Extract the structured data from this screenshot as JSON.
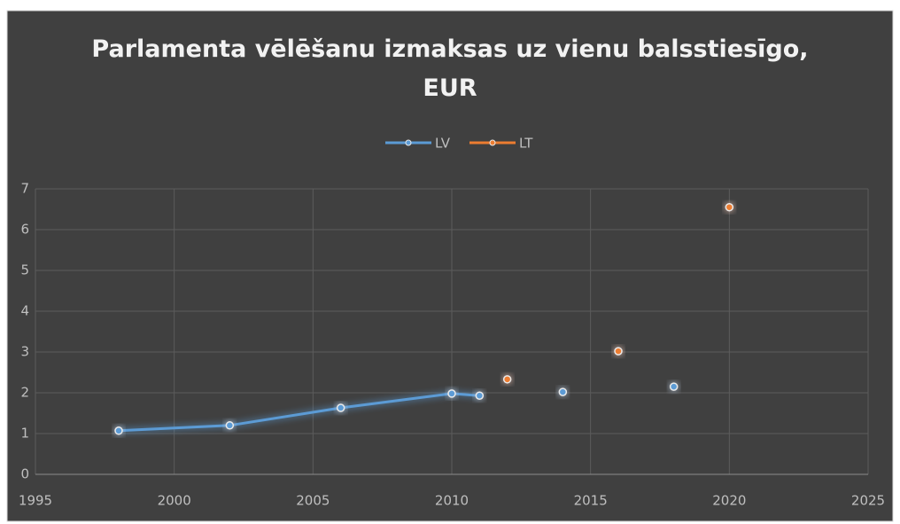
{
  "chart_data": {
    "type": "line",
    "title": "Parlamenta vēlēšanu izmaksas uz vienu balsstiesīgo, EUR",
    "x": [
      1998,
      2002,
      2006,
      2010,
      2011,
      2012,
      2014,
      2016,
      2018,
      2020
    ],
    "series": [
      {
        "name": "LV",
        "color": "#5b9bd5",
        "values": [
          1.07,
          1.2,
          1.63,
          1.98,
          1.93,
          null,
          2.02,
          null,
          2.15,
          null
        ]
      },
      {
        "name": "LT",
        "color": "#ed7d31",
        "values": [
          null,
          null,
          null,
          null,
          null,
          2.33,
          null,
          3.02,
          null,
          6.55
        ]
      }
    ],
    "xlim": [
      1995,
      2025
    ],
    "xticks": [
      1995,
      2000,
      2005,
      2010,
      2015,
      2020,
      2025
    ],
    "ylim": [
      0,
      7
    ],
    "yticks": [
      0,
      1,
      2,
      3,
      4,
      5,
      6,
      7
    ],
    "grid": true,
    "legend": "top"
  }
}
